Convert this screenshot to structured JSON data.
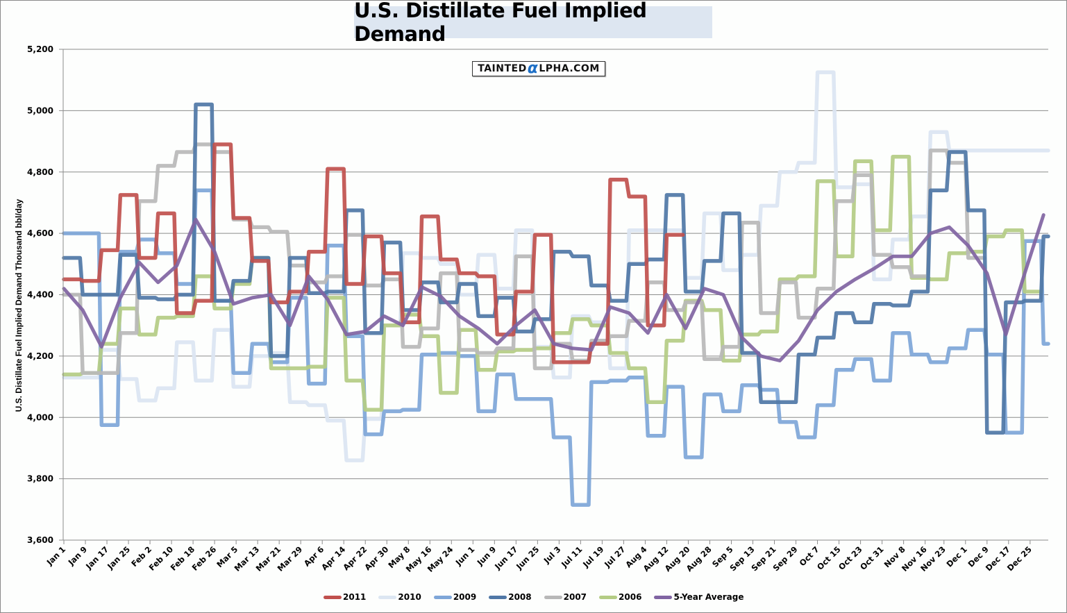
{
  "chart_data": {
    "type": "line",
    "title": "U.S. Distillate Fuel Implied Demand",
    "watermark": "TAINTEDαLPHA.COM",
    "xlabel": "",
    "ylabel": "U.S. Distillate Fuel Implied Demand Thousand bbl/day",
    "ylim": [
      3600,
      5200
    ],
    "yticks": [
      "3,600",
      "3,800",
      "4,000",
      "4,200",
      "4,400",
      "4,600",
      "4,800",
      "5,000",
      "5,200"
    ],
    "ytick_values": [
      3600,
      3800,
      4000,
      4200,
      4400,
      4600,
      4800,
      5000,
      5200
    ],
    "grid": true,
    "legend_position": "bottom",
    "x_unit": "day-of-year (weekly steps, day 0 = Jan 1)",
    "xlim": [
      0,
      365
    ],
    "categories": [
      "Jan 1",
      "Jan 9",
      "Jan 17",
      "Jan 25",
      "Feb 2",
      "Feb 10",
      "Feb 18",
      "Feb 26",
      "Mar 5",
      "Mar 13",
      "Mar 21",
      "Mar 29",
      "Apr 6",
      "Apr 14",
      "Apr 22",
      "Apr 30",
      "May 8",
      "May 16",
      "May 24",
      "Jun 1",
      "Jun 9",
      "Jun 17",
      "Jun 25",
      "Jul 3",
      "Jul 11",
      "Jul 19",
      "Jul 27",
      "Aug 4",
      "Aug 12",
      "Aug 20",
      "Aug 28",
      "Sep 5",
      "Sep 13",
      "Sep 21",
      "Sep 29",
      "Oct 7",
      "Oct 15",
      "Oct 23",
      "Oct 31",
      "Nov 8",
      "Nov 16",
      "Nov 23",
      "Dec 1",
      "Dec 9",
      "Dec 17",
      "Dec 25"
    ],
    "series": [
      {
        "name": "2011",
        "color": "#c0504d",
        "values": [
          4450,
          4445,
          4545,
          4725,
          4520,
          4665,
          4340,
          4380,
          4890,
          4650,
          4510,
          4375,
          4410,
          4540,
          4810,
          4435,
          4590,
          4470,
          4310,
          4655,
          4515,
          4470,
          4460,
          4270,
          4410,
          4595,
          4180,
          4180,
          4240,
          4775,
          4720,
          4300,
          4595
        ]
      },
      {
        "name": "2010",
        "color": "#dce6f2",
        "values": [
          4130,
          4130,
          4220,
          4125,
          4055,
          4095,
          4245,
          4120,
          4285,
          4100,
          4200,
          4210,
          4050,
          4040,
          3990,
          3860,
          3995,
          4300,
          4535,
          4520,
          4500,
          4400,
          4530,
          4420,
          4610,
          4230,
          4130,
          4330,
          4310,
          4160,
          4610,
          4610,
          4610,
          4455,
          4665,
          4480,
          4530,
          4690,
          4800,
          4830,
          5125,
          4750,
          4760,
          4450,
          4580,
          4655,
          4930,
          4870,
          4870,
          4870,
          4870,
          4870,
          4870
        ]
      },
      {
        "name": "2009",
        "color": "#7ea6d8",
        "values": [
          4600,
          4600,
          3975,
          4540,
          4580,
          4535,
          4435,
          4740,
          4380,
          4145,
          4240,
          4180,
          4390,
          4110,
          4560,
          4265,
          3945,
          4020,
          4025,
          4205,
          4210,
          4200,
          4020,
          4140,
          4060,
          4060,
          3935,
          3715,
          4115,
          4120,
          4130,
          3940,
          4100,
          3870,
          4075,
          4020,
          4105,
          4090,
          3985,
          3935,
          4040,
          4155,
          4190,
          4120,
          4275,
          4205,
          4180,
          4225,
          4285,
          4205,
          3950,
          4575,
          4240
        ]
      },
      {
        "name": "2008",
        "color": "#4f77a6",
        "values": [
          4520,
          4400,
          4400,
          4530,
          4390,
          4385,
          4400,
          5020,
          4380,
          4445,
          4520,
          4200,
          4520,
          4405,
          4410,
          4675,
          4275,
          4570,
          4350,
          4440,
          4375,
          4435,
          4330,
          4390,
          4280,
          4320,
          4540,
          4525,
          4430,
          4380,
          4500,
          4515,
          4725,
          4410,
          4510,
          4665,
          4210,
          4050,
          4050,
          4205,
          4260,
          4340,
          4310,
          4370,
          4365,
          4410,
          4740,
          4865,
          4675,
          3950,
          4375,
          4380,
          4590
        ]
      },
      {
        "name": "2007",
        "color": "#b8b8b8",
        "values": [
          4400,
          4145,
          4145,
          4275,
          4705,
          4820,
          4865,
          4890,
          4865,
          4645,
          4620,
          4605,
          4495,
          4440,
          4460,
          4595,
          4430,
          4450,
          4230,
          4290,
          4470,
          4220,
          4210,
          4225,
          4525,
          4160,
          4240,
          4185,
          4250,
          4265,
          4315,
          4440,
          4350,
          4375,
          4190,
          4230,
          4635,
          4340,
          4440,
          4325,
          4420,
          4705,
          4790,
          4530,
          4490,
          4460,
          4870,
          4830,
          4520
        ]
      },
      {
        "name": "2006",
        "color": "#b4cc84",
        "values": [
          4140,
          4145,
          4240,
          4355,
          4270,
          4325,
          4330,
          4460,
          4355,
          4435,
          4520,
          4160,
          4160,
          4165,
          4390,
          4120,
          4025,
          4300,
          4335,
          4265,
          4080,
          4285,
          4155,
          4215,
          4220,
          4225,
          4275,
          4320,
          4300,
          4210,
          4160,
          4050,
          4250,
          4380,
          4350,
          4185,
          4270,
          4280,
          4450,
          4460,
          4770,
          4525,
          4835,
          4610,
          4850,
          4455,
          4450,
          4535,
          4540,
          4590,
          4610,
          4410
        ]
      },
      {
        "name": "5-Year Average",
        "color": "#8064a2",
        "values": [
          4420,
          4350,
          4230,
          4390,
          4505,
          4440,
          4495,
          4645,
          4540,
          4370,
          4390,
          4400,
          4300,
          4460,
          4385,
          4270,
          4280,
          4330,
          4300,
          4425,
          4395,
          4330,
          4290,
          4240,
          4300,
          4350,
          4240,
          4225,
          4220,
          4360,
          4340,
          4275,
          4400,
          4290,
          4420,
          4400,
          4260,
          4200,
          4185,
          4250,
          4350,
          4410,
          4450,
          4485,
          4525,
          4525,
          4600,
          4620,
          4560,
          4470,
          4270,
          4470,
          4660,
          4600,
          4530
        ]
      }
    ]
  }
}
